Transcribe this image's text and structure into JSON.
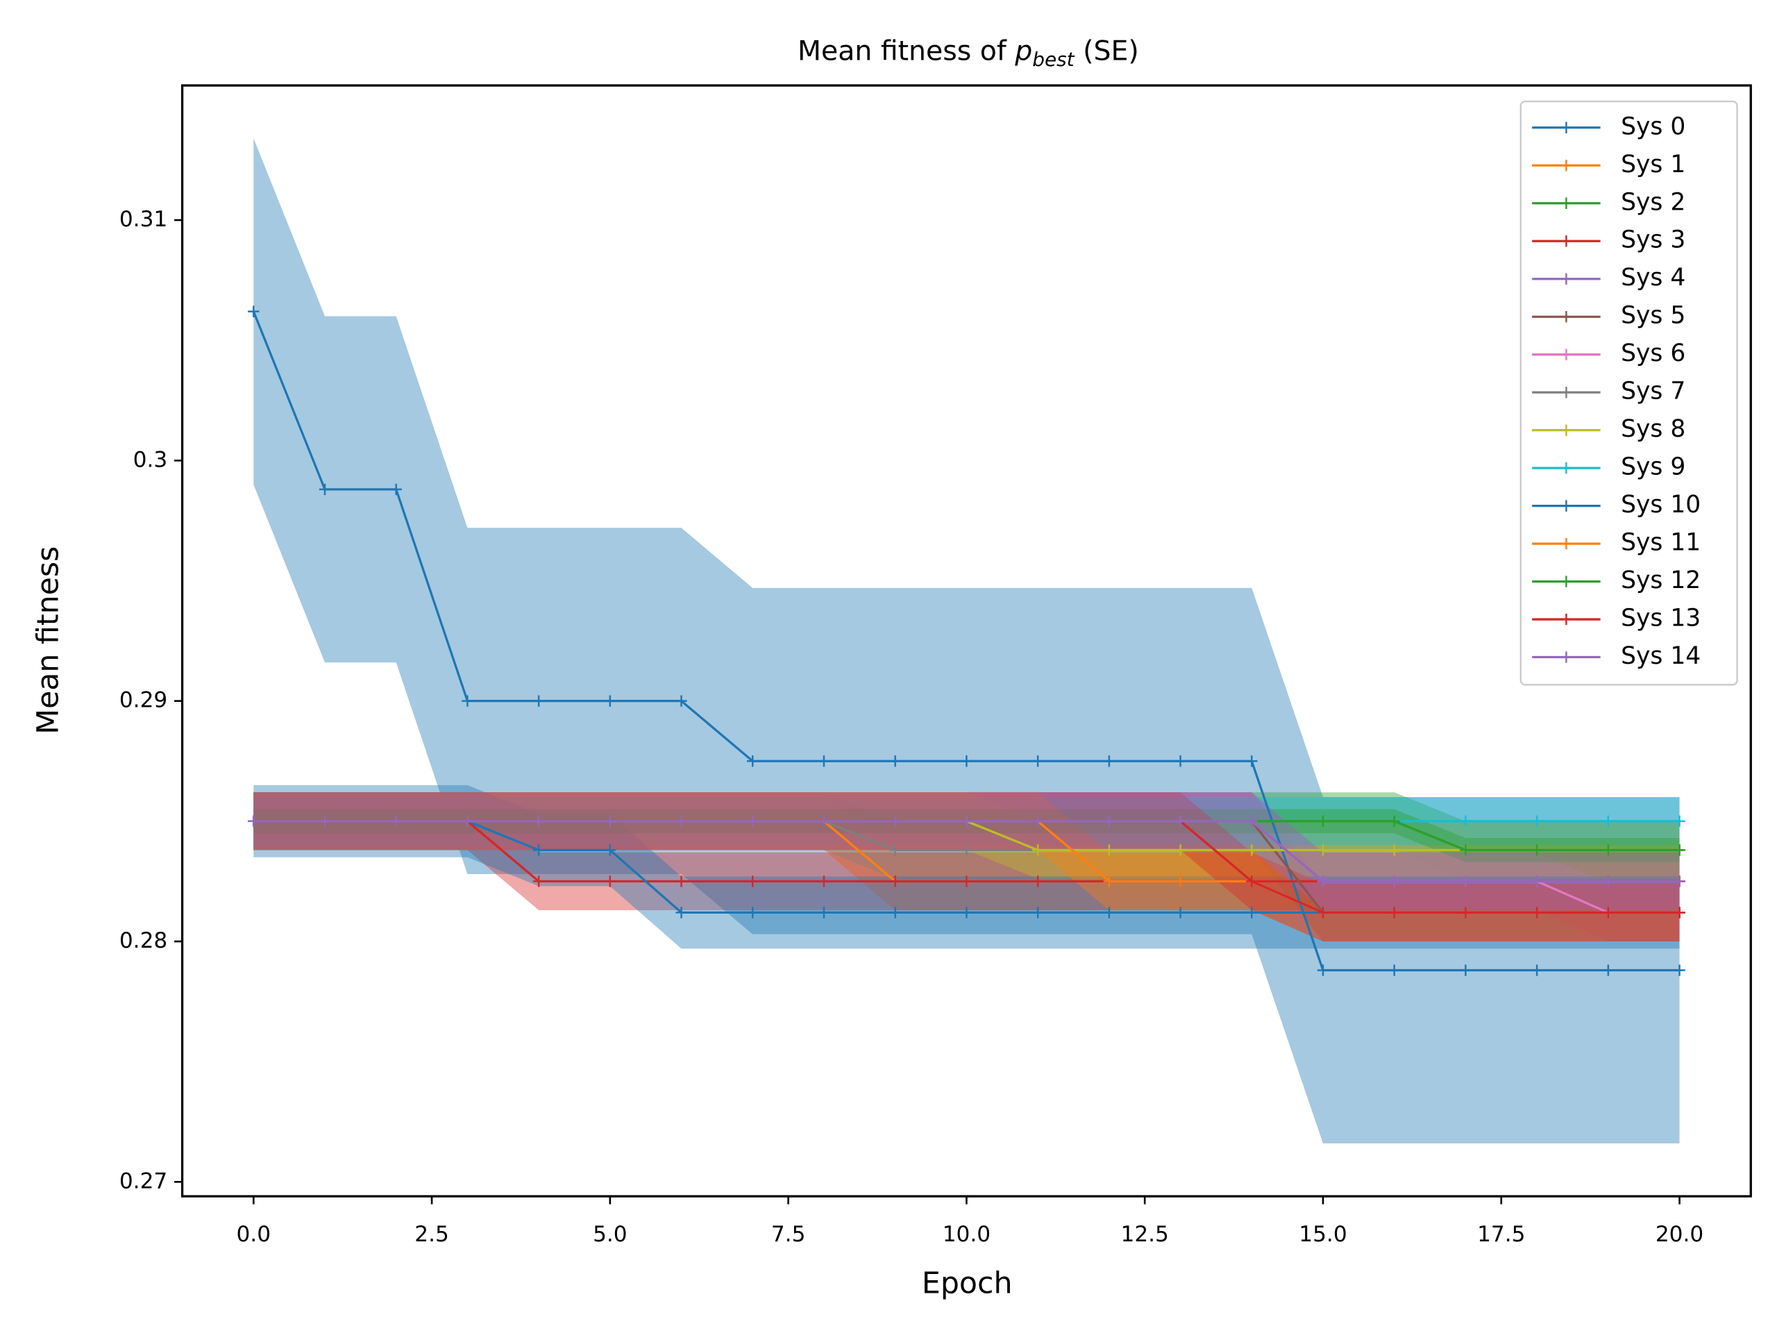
{
  "chart_data": {
    "type": "line",
    "title": [
      "Mean fitness of",
      "p",
      "best",
      "(SE)"
    ],
    "xlabel": "Epoch",
    "ylabel": "Mean fitness",
    "x": [
      0,
      1,
      2,
      3,
      4,
      5,
      6,
      7,
      8,
      9,
      10,
      11,
      12,
      13,
      14,
      15,
      16,
      17,
      18,
      19,
      20
    ],
    "xlim": [
      -1,
      21
    ],
    "ylim": [
      0.2694,
      0.3156
    ],
    "xticks": [
      {
        "value": 0,
        "label": "0.0"
      },
      {
        "value": 2.5,
        "label": "2.5"
      },
      {
        "value": 5,
        "label": "5.0"
      },
      {
        "value": 7.5,
        "label": "7.5"
      },
      {
        "value": 10,
        "label": "10.0"
      },
      {
        "value": 12.5,
        "label": "12.5"
      },
      {
        "value": 15,
        "label": "15.0"
      },
      {
        "value": 17.5,
        "label": "17.5"
      },
      {
        "value": 20,
        "label": "20.0"
      }
    ],
    "yticks": [
      0.27,
      0.28,
      0.29,
      0.3,
      0.31
    ],
    "legend": "upper right",
    "grid": false,
    "series": [
      {
        "name": "Sys 0",
        "color": "#1f77b4",
        "se": 0.0072,
        "values": [
          0.3062,
          0.2988,
          0.2988,
          0.29,
          0.29,
          0.29,
          0.29,
          0.2875,
          0.2875,
          0.2875,
          0.2875,
          0.2875,
          0.2875,
          0.2875,
          0.2875,
          0.2788,
          0.2788,
          0.2788,
          0.2788,
          0.2788,
          0.2788
        ]
      },
      {
        "name": "Sys 1",
        "color": "#ff7f0e",
        "se": 0.0012,
        "values": [
          0.285,
          0.285,
          0.285,
          0.285,
          0.285,
          0.285,
          0.285,
          0.285,
          0.285,
          0.2825,
          0.2825,
          0.2825,
          0.2825,
          0.2825,
          0.2825,
          0.2825,
          0.2825,
          0.2825,
          0.2825,
          0.2825,
          0.2825
        ]
      },
      {
        "name": "Sys 2",
        "color": "#2ca02c",
        "se": 0.0012,
        "values": [
          0.285,
          0.285,
          0.285,
          0.285,
          0.285,
          0.285,
          0.285,
          0.285,
          0.285,
          0.285,
          0.285,
          0.285,
          0.285,
          0.285,
          0.285,
          0.285,
          0.285,
          0.2838,
          0.2838,
          0.2838,
          0.2838
        ]
      },
      {
        "name": "Sys 3",
        "color": "#d62728",
        "se": 0.0012,
        "values": [
          0.285,
          0.285,
          0.285,
          0.285,
          0.2825,
          0.2825,
          0.2825,
          0.2825,
          0.2825,
          0.2825,
          0.2825,
          0.2825,
          0.2825,
          0.2825,
          0.2825,
          0.2825,
          0.2825,
          0.2825,
          0.2825,
          0.2825,
          0.2825
        ]
      },
      {
        "name": "Sys 4",
        "color": "#9467bd",
        "se": 0.0012,
        "values": [
          0.285,
          0.285,
          0.285,
          0.285,
          0.285,
          0.285,
          0.285,
          0.285,
          0.285,
          0.285,
          0.285,
          0.285,
          0.285,
          0.285,
          0.285,
          0.2825,
          0.2825,
          0.2825,
          0.2825,
          0.2812,
          0.2812
        ]
      },
      {
        "name": "Sys 5",
        "color": "#8c564b",
        "se": 0.0012,
        "values": [
          0.285,
          0.285,
          0.285,
          0.285,
          0.285,
          0.285,
          0.285,
          0.285,
          0.285,
          0.285,
          0.285,
          0.285,
          0.285,
          0.285,
          0.285,
          0.2812,
          0.2812,
          0.2812,
          0.2812,
          0.2812,
          0.2812
        ]
      },
      {
        "name": "Sys 6",
        "color": "#e377c2",
        "se": 0.0012,
        "values": [
          0.285,
          0.285,
          0.285,
          0.285,
          0.285,
          0.285,
          0.285,
          0.285,
          0.285,
          0.285,
          0.285,
          0.285,
          0.285,
          0.285,
          0.285,
          0.2825,
          0.2825,
          0.2825,
          0.2825,
          0.2812,
          0.2812
        ]
      },
      {
        "name": "Sys 7",
        "color": "#7f7f7f",
        "se": 0.0012,
        "values": [
          0.285,
          0.285,
          0.285,
          0.285,
          0.285,
          0.285,
          0.285,
          0.285,
          0.285,
          0.2838,
          0.2838,
          0.2838,
          0.2838,
          0.2838,
          0.2838,
          0.2838,
          0.2838,
          0.2838,
          0.2838,
          0.2838,
          0.2838
        ]
      },
      {
        "name": "Sys 8",
        "color": "#bcbd22",
        "se": 0.0012,
        "values": [
          0.285,
          0.285,
          0.285,
          0.285,
          0.285,
          0.285,
          0.285,
          0.285,
          0.285,
          0.285,
          0.285,
          0.2838,
          0.2838,
          0.2838,
          0.2838,
          0.2838,
          0.2838,
          0.2838,
          0.2838,
          0.2838,
          0.2838
        ]
      },
      {
        "name": "Sys 9",
        "color": "#17becf",
        "se": 0.001,
        "values": [
          0.285,
          0.285,
          0.285,
          0.285,
          0.285,
          0.285,
          0.285,
          0.285,
          0.285,
          0.285,
          0.285,
          0.285,
          0.285,
          0.285,
          0.285,
          0.285,
          0.285,
          0.285,
          0.285,
          0.285,
          0.285
        ]
      },
      {
        "name": "Sys 10",
        "color": "#1f77b4",
        "se": 0.0015,
        "values": [
          0.285,
          0.285,
          0.285,
          0.285,
          0.2838,
          0.2838,
          0.2812,
          0.2812,
          0.2812,
          0.2812,
          0.2812,
          0.2812,
          0.2812,
          0.2812,
          0.2812,
          0.2812,
          0.2812,
          0.2812,
          0.2812,
          0.2812,
          0.2812
        ]
      },
      {
        "name": "Sys 11",
        "color": "#ff7f0e",
        "se": 0.0012,
        "values": [
          0.285,
          0.285,
          0.285,
          0.285,
          0.285,
          0.285,
          0.285,
          0.285,
          0.285,
          0.285,
          0.285,
          0.285,
          0.2825,
          0.2825,
          0.2825,
          0.2812,
          0.2812,
          0.2812,
          0.2812,
          0.2812,
          0.2812
        ]
      },
      {
        "name": "Sys 12",
        "color": "#2ca02c",
        "se": 0.0005,
        "values": [
          0.285,
          0.285,
          0.285,
          0.285,
          0.285,
          0.285,
          0.285,
          0.285,
          0.285,
          0.285,
          0.285,
          0.285,
          0.285,
          0.285,
          0.285,
          0.285,
          0.285,
          0.2838,
          0.2838,
          0.2838,
          0.2838
        ]
      },
      {
        "name": "Sys 13",
        "color": "#d62728",
        "se": 0.0012,
        "values": [
          0.285,
          0.285,
          0.285,
          0.285,
          0.285,
          0.285,
          0.285,
          0.285,
          0.285,
          0.285,
          0.285,
          0.285,
          0.285,
          0.285,
          0.2825,
          0.2812,
          0.2812,
          0.2812,
          0.2812,
          0.2812,
          0.2812
        ]
      },
      {
        "name": "Sys 14",
        "color": "#9467bd",
        "se": 0.0012,
        "values": [
          0.285,
          0.285,
          0.285,
          0.285,
          0.285,
          0.285,
          0.285,
          0.285,
          0.285,
          0.285,
          0.285,
          0.285,
          0.285,
          0.285,
          0.285,
          0.2825,
          0.2825,
          0.2825,
          0.2825,
          0.2825,
          0.2825
        ]
      }
    ]
  }
}
